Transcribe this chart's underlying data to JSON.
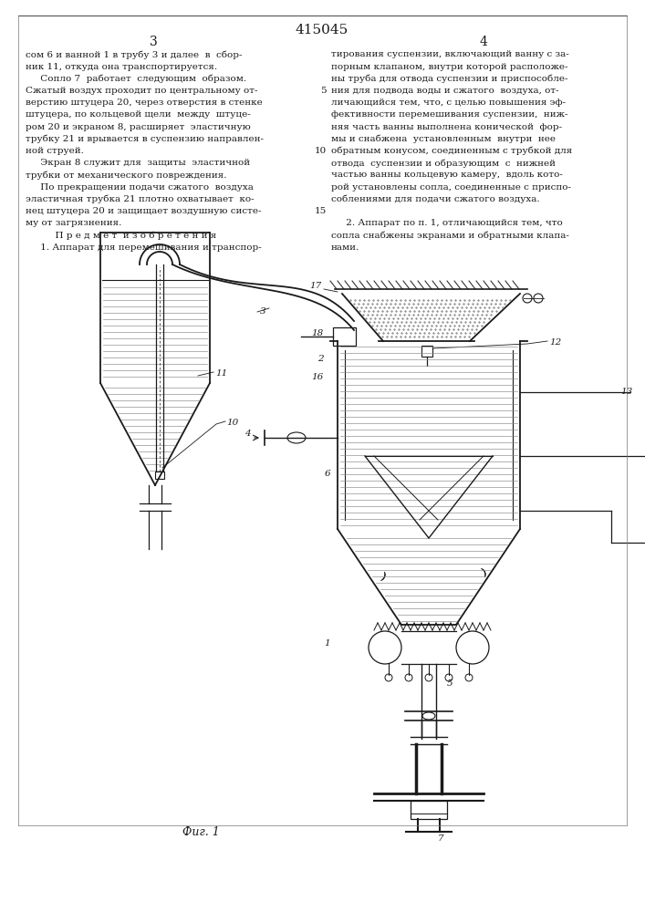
{
  "patent_number": "415045",
  "page_left": "3",
  "page_right": "4",
  "bg_color": "#ffffff",
  "text_color": "#1a1a1a",
  "line_color": "#1a1a1a",
  "figure_label": "Фиг. 1",
  "text_left_col": [
    "сом 6 и ванной 1 в трубу 3 и далее  в  сбор-",
    "ник 11, откуда она транспортируется.",
    "     Сопло 7  работает  следующим  образом.",
    "Сжатый воздух проходит по центральному от-",
    "верстию штуцера 20, через отверстия в стенке",
    "штуцера, по кольцевой щели  между  штуце-",
    "ром 20 и экраном 8, расширяет  эластичную",
    "трубку 21 и врывается в суспензию направлен-",
    "ной струей.",
    "     Экран 8 служит для  защиты  эластичной",
    "трубки от механического повреждения.",
    "     По прекращении подачи сжатого  воздуха",
    "эластичная трубка 21 плотно охватывает  ко-",
    "нец штуцера 20 и защищает воздушную систе-",
    "му от загрязнения.",
    "          П р е д м е т  и з о б р е т е н и я",
    "     1. Аппарат для перемешивания и транспор-"
  ],
  "text_right_col": [
    "тирования суспензии, включающий ванну с за-",
    "порным клапаном, внутри которой расположе-",
    "ны труба для отвода суспензии и приспособле-",
    "ния для подвода воды и сжатого  воздуха, от-",
    "личающийся тем, что, с целью повышения эф-",
    "фективности перемешивания суспензии,  ниж-",
    "няя часть ванны выполнена конической  фор-",
    "мы и снабжена  установленным  внутри  нее",
    "обратным конусом, соединенным с трубкой для",
    "отвода  суспензии и образующим  с  нижней",
    "частью ванны кольцевую камеру,  вдоль кото-",
    "рой установлены сопла, соединенные с приспо-",
    "соблениями для подачи сжатого воздуха."
  ],
  "text_right_col2": [
    "     2. Аппарат по п. 1, отличающийся тем, что",
    "сопла снабжены экранами и обратными клапа-",
    "нами."
  ]
}
